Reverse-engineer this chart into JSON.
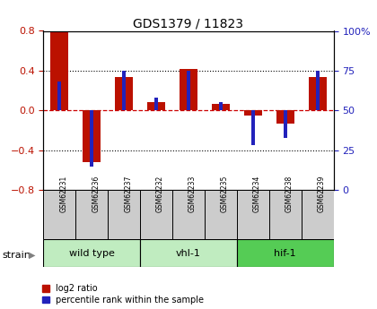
{
  "title": "GDS1379 / 11823",
  "samples": [
    "GSM62231",
    "GSM62236",
    "GSM62237",
    "GSM62232",
    "GSM62233",
    "GSM62235",
    "GSM62234",
    "GSM62238",
    "GSM62239"
  ],
  "log2_ratio": [
    0.79,
    -0.52,
    0.34,
    0.08,
    0.42,
    0.07,
    -0.05,
    -0.13,
    0.34
  ],
  "percentile": [
    68,
    15,
    75,
    58,
    75,
    55,
    28,
    33,
    75
  ],
  "groups": [
    {
      "label": "wild type",
      "start": 0,
      "end": 3,
      "color": "#c0ecc0"
    },
    {
      "label": "vhl-1",
      "start": 3,
      "end": 6,
      "color": "#c0ecc0"
    },
    {
      "label": "hif-1",
      "start": 6,
      "end": 9,
      "color": "#55cc55"
    }
  ],
  "ylim_left": [
    -0.8,
    0.8
  ],
  "ylim_right": [
    0,
    100
  ],
  "yticks_left": [
    -0.8,
    -0.4,
    0.0,
    0.4,
    0.8
  ],
  "yticks_right": [
    0,
    25,
    50,
    75,
    100
  ],
  "bar_color_red": "#bb1100",
  "bar_color_blue": "#2222bb",
  "grid_color": "#000000",
  "zero_line_color": "#cc0000",
  "sample_box_color": "#cccccc",
  "strain_label": "strain",
  "legend_red": "log2 ratio",
  "legend_blue": "percentile rank within the sample",
  "red_bar_width": 0.55,
  "blue_bar_width": 0.12
}
